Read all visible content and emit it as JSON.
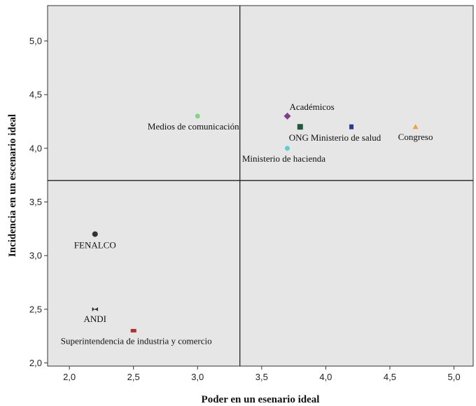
{
  "chart_data": {
    "type": "scatter",
    "title": "",
    "xlabel": "Poder en un esenario ideal",
    "ylabel": "Incidencia en un escenario ideal",
    "xlim": [
      1.83,
      5.15
    ],
    "ylim": [
      1.97,
      5.33
    ],
    "x_ticks": [
      "2,0",
      "2,5",
      "3,0",
      "3,5",
      "4,0",
      "4,5",
      "5,0"
    ],
    "x_tick_values": [
      2.0,
      2.5,
      3.0,
      3.5,
      4.0,
      4.5,
      5.0
    ],
    "y_ticks": [
      "2,0",
      "2,5",
      "3,0",
      "3,5",
      "4,0",
      "4,5",
      "5,0"
    ],
    "y_tick_values": [
      2.0,
      2.5,
      3.0,
      3.5,
      4.0,
      4.5,
      5.0
    ],
    "reference_lines": {
      "x": 3.33,
      "y": 3.7
    },
    "grid": false,
    "background_color": "#e6e6e6",
    "points": [
      {
        "label": "Académicos",
        "x": 3.7,
        "y": 4.3,
        "marker": "diamond",
        "color": "#7b3f8c",
        "label_pos": "above-right"
      },
      {
        "label": "ONG",
        "x": 3.8,
        "y": 4.2,
        "marker": "square",
        "color": "#1f5a3c",
        "label_pos": "below-left"
      },
      {
        "label": "Ministerio de salud",
        "x": 4.2,
        "y": 4.2,
        "marker": "square-small",
        "color": "#2b3a8c",
        "label_pos": "below"
      },
      {
        "label": "Congreso",
        "x": 4.7,
        "y": 4.2,
        "marker": "triangle",
        "color": "#f0a040",
        "label_pos": "below"
      },
      {
        "label": "Medios de comunicación",
        "x": 3.0,
        "y": 4.3,
        "marker": "circle",
        "color": "#7fd87f",
        "label_pos": "below-left"
      },
      {
        "label": "Ministerio de hacienda",
        "x": 3.7,
        "y": 4.0,
        "marker": "circle",
        "color": "#5ad0d0",
        "label_pos": "below"
      },
      {
        "label": "FENALCO",
        "x": 2.2,
        "y": 3.2,
        "marker": "circle",
        "color": "#333333",
        "label_pos": "below"
      },
      {
        "label": "ANDI",
        "x": 2.2,
        "y": 2.5,
        "marker": "bowtie",
        "color": "#111111",
        "label_pos": "below"
      },
      {
        "label": "Superintendencia de industria y comercio",
        "x": 2.5,
        "y": 2.3,
        "marker": "rect",
        "color": "#b03030",
        "label_pos": "below"
      }
    ]
  }
}
